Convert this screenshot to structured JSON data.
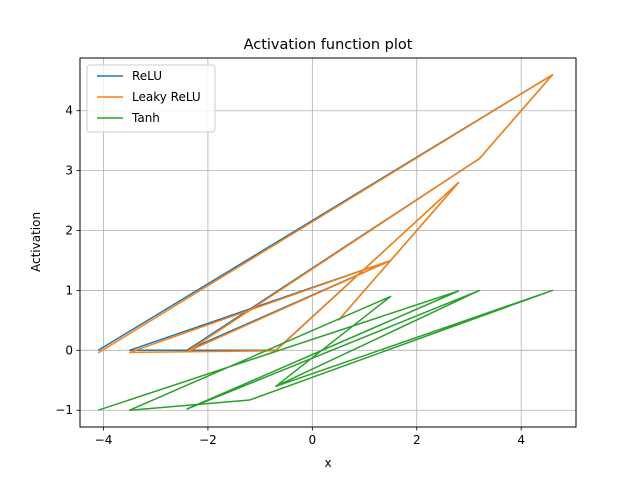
{
  "chart_data": {
    "type": "line",
    "title": "Activation function plot",
    "xlabel": "x",
    "ylabel": "Activation",
    "xlim": [
      -4.45,
      5.05
    ],
    "ylim": [
      -1.28,
      4.88
    ],
    "xticks": [
      -4,
      -2,
      0,
      2,
      4
    ],
    "xtick_labels": [
      "−4",
      "−2",
      "0",
      "2",
      "4"
    ],
    "yticks": [
      -1,
      0,
      1,
      2,
      3,
      4
    ],
    "ytick_labels": [
      "−1",
      "0",
      "1",
      "2",
      "3",
      "4"
    ],
    "grid": true,
    "legend_position": "top-left",
    "series": [
      {
        "name": "ReLU",
        "color": "#1f77b4",
        "x": [
          -4.1,
          4.6,
          3.2,
          -2.4,
          1.5,
          -3.5,
          -0.7,
          2.8,
          0.5
        ],
        "y": [
          0.0,
          4.6,
          3.2,
          0.0,
          1.5,
          0.0,
          0.0,
          2.8,
          0.5
        ]
      },
      {
        "name": "Leaky ReLU",
        "color": "#ff7f0e",
        "x": [
          -4.1,
          4.6,
          3.2,
          -2.4,
          1.5,
          -3.5,
          -0.7,
          2.8,
          0.5
        ],
        "y": [
          -0.041,
          4.6,
          3.2,
          -0.024,
          1.5,
          -0.035,
          -0.007,
          2.8,
          0.5
        ]
      },
      {
        "name": "Tanh",
        "color": "#2ca02c",
        "x": [
          -4.1,
          2.8,
          -2.4,
          3.2,
          -0.7,
          1.5,
          -3.5,
          -1.2,
          4.6,
          -0.7
        ],
        "y": [
          -1.0,
          0.99,
          -0.98,
          1.0,
          -0.6,
          0.9,
          -1.0,
          -0.83,
          1.0,
          -0.6
        ]
      }
    ]
  }
}
